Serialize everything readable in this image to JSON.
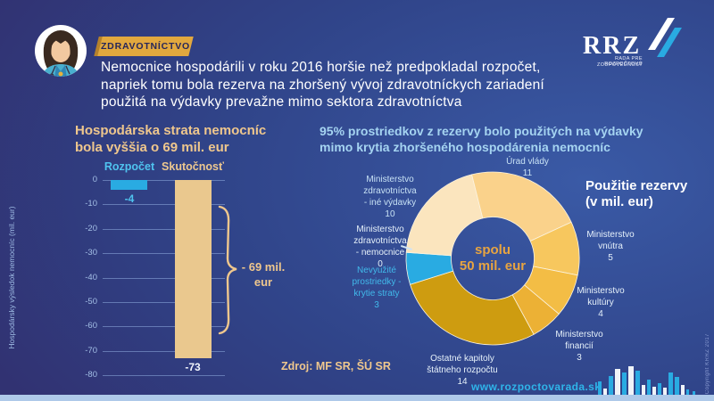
{
  "header": {
    "badge": "ZDRAVOTNÍCTVO",
    "title": "Nemocnice hospodárili v roku 2016 horšie než predpokladal rozpočet,\nnapriek tomu bola rezerva na zhoršený vývoj zdravotníckych zariadení\npoužitá na výdavky prevažne mimo sektora zdravotníctva",
    "logo": {
      "text": "RRZ",
      "tagline_line1": "RADA PRE ROZPOČTOVÚ",
      "tagline_line2": "ZODPOVEDNOSŤ"
    }
  },
  "chart_data": [
    {
      "type": "bar",
      "title": "Hospodárska strata nemocníc\nbola vyššia o 69 mil. eur",
      "categories": [
        "Rozpočet",
        "Skutočnosť"
      ],
      "values": [
        -4,
        -73
      ],
      "bar_colors": [
        "#29ABE2",
        "#EAC88E"
      ],
      "ylabel": "Hospodársky výsledok nemocníc (mil. eur)",
      "ylim": [
        -80,
        0
      ],
      "yticks": [
        0,
        -10,
        -20,
        -30,
        -40,
        -50,
        -60,
        -70,
        -80
      ],
      "grid": true,
      "annotation": "- 69 mil.\neur"
    },
    {
      "type": "pie",
      "subtype": "donut",
      "title": "95%  prostriedkov z rezervy bolo použitých na výdavky\nmimo krytia zhoršeného hospodárenia nemocníc",
      "legend_title": "Použitie rezervy\n(v mil. eur)",
      "center_label": "spolu\n50 mil. eur",
      "total": 50,
      "start_angle_deg": -14,
      "segments": [
        {
          "label": "Úrad vlády",
          "value": 11,
          "color": "#FAD28B"
        },
        {
          "label": "Ministerstvo\nvnútra",
          "value": 5,
          "color": "#F7C75E"
        },
        {
          "label": "Ministerstvo\nkultúry",
          "value": 4,
          "color": "#F3BD45"
        },
        {
          "label": "Ministerstvo\nfinancií",
          "value": 3,
          "color": "#ECB135"
        },
        {
          "label": "Ostatné kapitoly\nštátneho rozpočtu",
          "value": 14,
          "color": "#CE9C10"
        },
        {
          "label": "Nevyužité\nprostriedky -\nkrytie straty",
          "value": 3,
          "color": "#29ABE2"
        },
        {
          "label": "Ministerstvo\nzdravotníctva\n- nemocnice",
          "value": 0,
          "color": "#FBE5BE"
        },
        {
          "label": "Ministerstvo\nzdravotníctva\n- iné výdavky",
          "value": 10,
          "color": "#FBE5BE"
        }
      ]
    }
  ],
  "footer": {
    "source": "Zdroj: MF SR, ŠÚ SR",
    "website": "www.rozpoctovarada.sk",
    "copyright": "Copyright KRRZ 2017"
  },
  "colors": {
    "accent_gold": "#E2A83E",
    "accent_cyan": "#29ABE2",
    "accent_tan": "#EAC88E",
    "footer_strip": "#AEC9E9"
  }
}
